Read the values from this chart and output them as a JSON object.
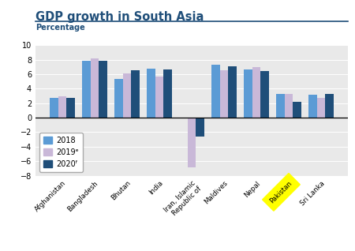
{
  "title": "GDP growth in South Asia",
  "ylabel": "Percentage",
  "categories": [
    "Afghanistan",
    "Bangladesh",
    "Bhutan",
    "India",
    "Iran, Islamic\nRepublic of",
    "Maldives",
    "Nepal",
    "Pakistan",
    "Sri Lanka"
  ],
  "values_2018": [
    2.7,
    7.9,
    5.3,
    6.8,
    -0.1,
    7.3,
    6.7,
    3.3,
    3.2
  ],
  "values_2019e": [
    3.0,
    8.2,
    6.1,
    5.7,
    -6.8,
    6.5,
    7.0,
    3.3,
    2.7
  ],
  "values_2020f": [
    2.7,
    7.9,
    6.5,
    6.7,
    -2.6,
    7.1,
    6.4,
    2.2,
    3.3
  ],
  "color_2018": "#5b9bd5",
  "color_2019e": "#c9b8d8",
  "color_2020f": "#1f4e79",
  "ylim": [
    -8,
    10
  ],
  "yticks": [
    -8,
    -6,
    -4,
    -2,
    0,
    2,
    4,
    6,
    8,
    10
  ],
  "title_color": "#1f4e79",
  "ylabel_color": "#1f4e79",
  "background_color": "#e9e9e9",
  "legend_labels": [
    "2018",
    "2019ᵉ",
    "2020ᶠ"
  ],
  "pakistan_highlight": "#ffff00",
  "bar_width": 0.26,
  "title_fontsize": 10.5,
  "tick_fontsize": 7,
  "legend_fontsize": 7
}
